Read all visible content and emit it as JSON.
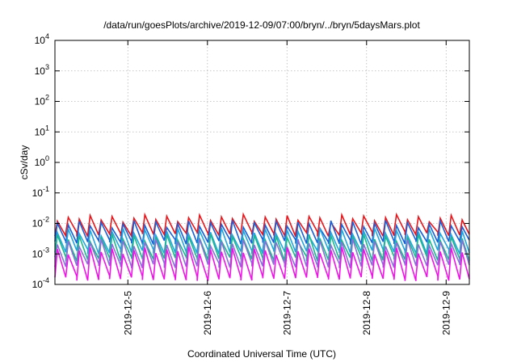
{
  "chart_data": {
    "type": "line",
    "title": "/data/run/goesPlots/archive/2019-12-09/07:00/bryn/../bryn/5daysMars.plot",
    "xlabel": "Coordinated Universal Time (UTC)",
    "ylabel": "cSv/day",
    "yscale": "log",
    "ylim": [
      0.0001,
      10000
    ],
    "xlim": [
      "2019-12-04T02:00",
      "2019-12-09T07:00"
    ],
    "grid": true,
    "legend": "none",
    "y_ticks": [
      {
        "base": "10",
        "exp": "-4",
        "value": 0.0001
      },
      {
        "base": "10",
        "exp": "-3",
        "value": 0.001
      },
      {
        "base": "10",
        "exp": "-2",
        "value": 0.01
      },
      {
        "base": "10",
        "exp": "-1",
        "value": 0.1
      },
      {
        "base": "10",
        "exp": "0",
        "value": 1
      },
      {
        "base": "10",
        "exp": "1",
        "value": 10
      },
      {
        "base": "10",
        "exp": "2",
        "value": 100
      },
      {
        "base": "10",
        "exp": "3",
        "value": 1000
      },
      {
        "base": "10",
        "exp": "4",
        "value": 10000
      }
    ],
    "x_ticks": [
      {
        "label": "2019-12-5",
        "value": "2019-12-05T00:00"
      },
      {
        "label": "2019-12-6",
        "value": "2019-12-06T00:00"
      },
      {
        "label": "2019-12-7",
        "value": "2019-12-07T00:00"
      },
      {
        "label": "2019-12-8",
        "value": "2019-12-08T00:00"
      },
      {
        "label": "2019-12-9",
        "value": "2019-12-09T00:00"
      }
    ],
    "series": [
      {
        "color": "#e8151b",
        "peak": 0.014,
        "trough": 0.0045
      },
      {
        "color": "#1a5fd6",
        "peak": 0.009,
        "trough": 0.0025
      },
      {
        "color": "#22a6dd",
        "peak": 0.005,
        "trough": 0.0012
      },
      {
        "color": "#1bb98b",
        "peak": 0.0032,
        "trough": 0.0007
      },
      {
        "color": "#8b6fd8",
        "peak": 0.0022,
        "trough": 0.00042
      },
      {
        "color": "#f013e8",
        "peak": 0.0012,
        "trough": 0.00016
      }
    ],
    "cycle_hours": 3.3
  }
}
